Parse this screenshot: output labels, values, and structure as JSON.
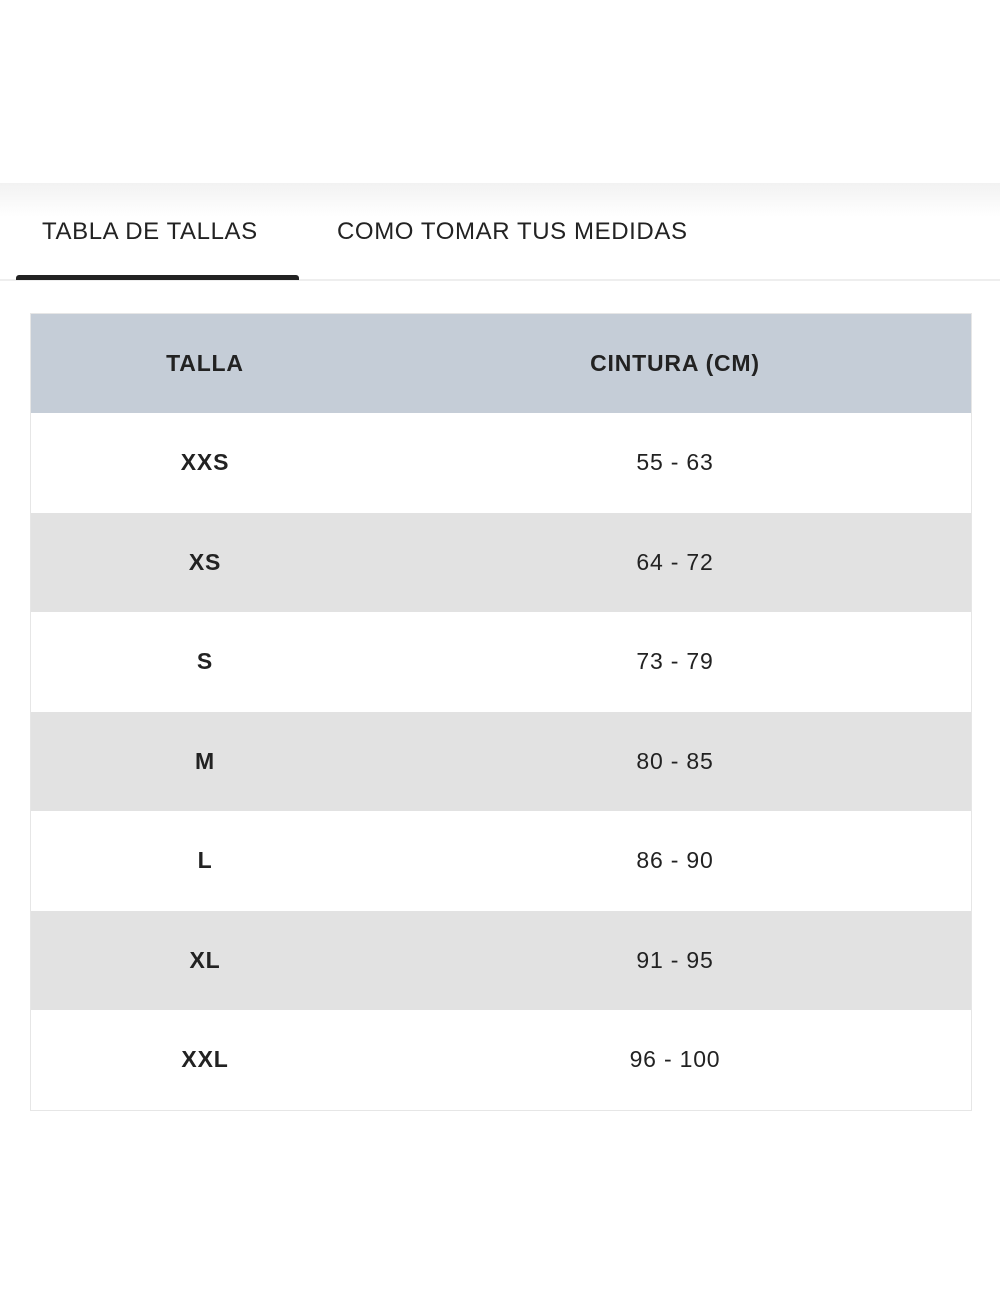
{
  "tabs": [
    {
      "label": "TABLA DE TALLAS",
      "active": true
    },
    {
      "label": "COMO TOMAR TUS MEDIDAS",
      "active": false
    }
  ],
  "table": {
    "headers": [
      "TALLA",
      "CINTURA (CM)"
    ],
    "rows": [
      {
        "size": "XXS",
        "waist": "55 - 63"
      },
      {
        "size": "XS",
        "waist": "64 - 72"
      },
      {
        "size": "S",
        "waist": "73 - 79"
      },
      {
        "size": "M",
        "waist": "80 - 85"
      },
      {
        "size": "L",
        "waist": "86 - 90"
      },
      {
        "size": "XL",
        "waist": "91 - 95"
      },
      {
        "size": "XXL",
        "waist": "96 - 100"
      }
    ]
  },
  "colors": {
    "header_bg": "#c5cdd7",
    "alt_row_bg": "#e2e2e2",
    "active_tab_underline": "#222222"
  }
}
